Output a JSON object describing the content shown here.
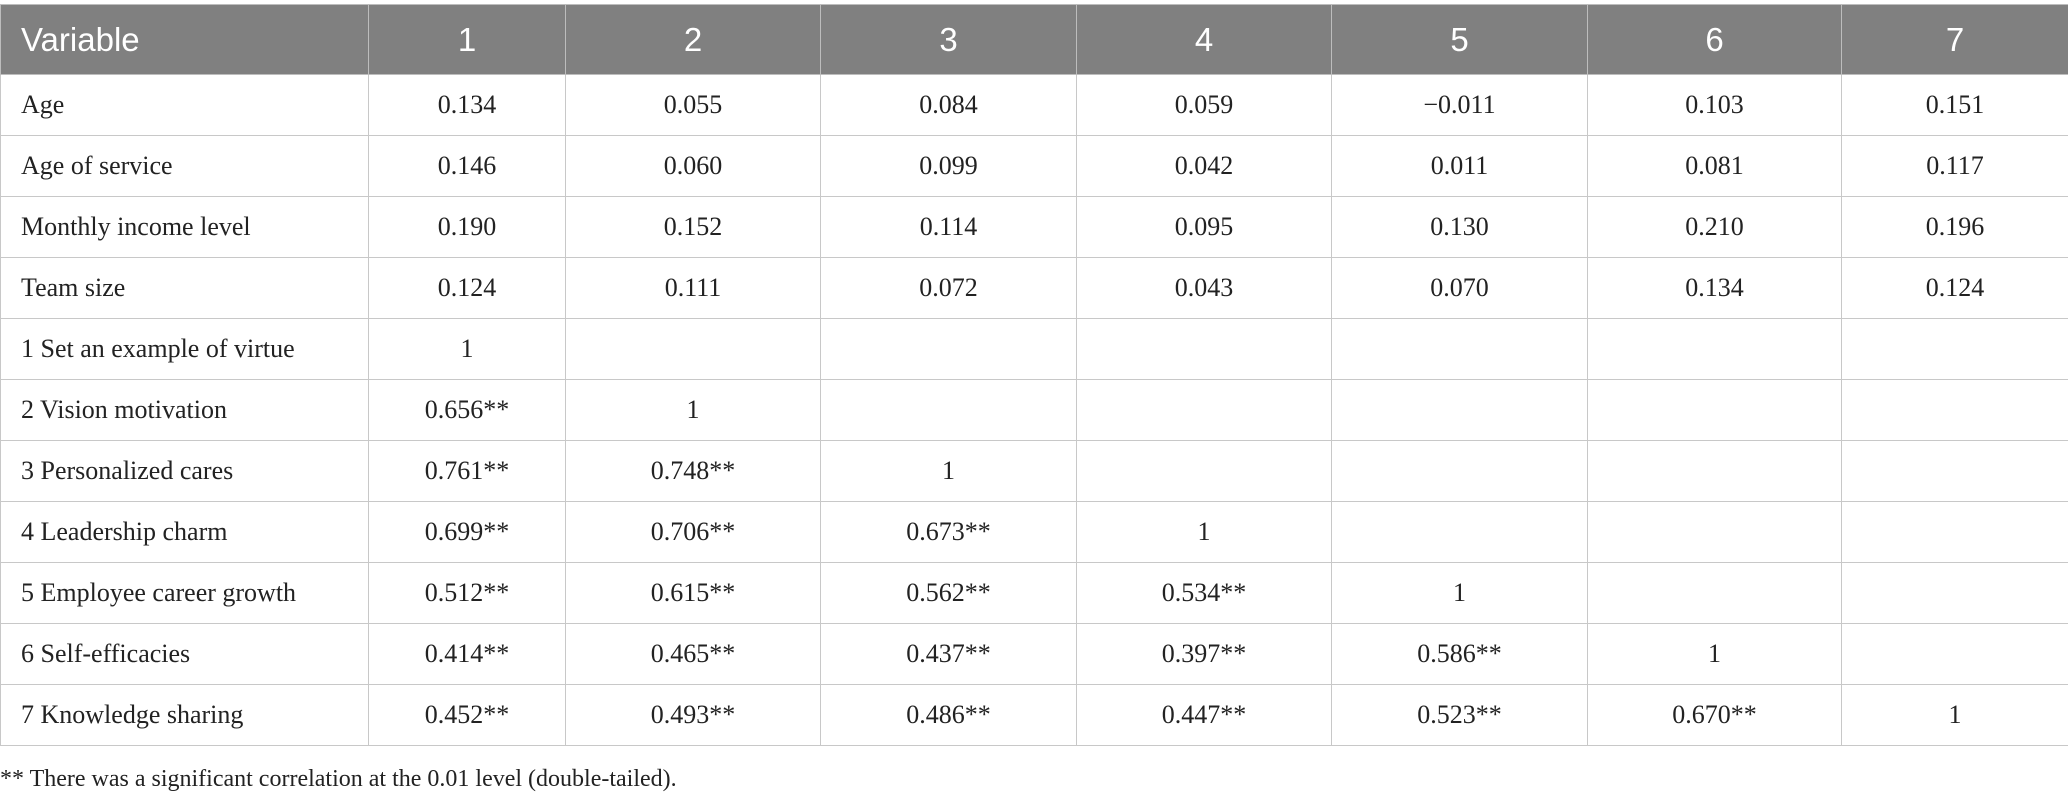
{
  "table": {
    "header": [
      "Variable",
      "1",
      "2",
      "3",
      "4",
      "5",
      "6",
      "7"
    ],
    "rows": [
      [
        "Age",
        "0.134",
        "0.055",
        "0.084",
        "0.059",
        "−0.011",
        "0.103",
        "0.151"
      ],
      [
        "Age of service",
        "0.146",
        "0.060",
        "0.099",
        "0.042",
        "0.011",
        "0.081",
        "0.117"
      ],
      [
        "Monthly income level",
        "0.190",
        "0.152",
        "0.114",
        "0.095",
        "0.130",
        "0.210",
        "0.196"
      ],
      [
        "Team size",
        "0.124",
        "0.111",
        "0.072",
        "0.043",
        "0.070",
        "0.134",
        "0.124"
      ],
      [
        "1 Set an example of virtue",
        "1"
      ],
      [
        "2 Vision motivation",
        "0.656**",
        "1"
      ],
      [
        "3 Personalized cares",
        "0.761**",
        "0.748**",
        "1"
      ],
      [
        "4 Leadership charm",
        "0.699**",
        "0.706**",
        "0.673**",
        "1"
      ],
      [
        "5 Employee career growth",
        "0.512**",
        "0.615**",
        "0.562**",
        "0.534**",
        "1"
      ],
      [
        "6 Self-efficacies",
        "0.414**",
        "0.465**",
        "0.437**",
        "0.397**",
        "0.586**",
        "1"
      ],
      [
        "7 Knowledge sharing",
        "0.452**",
        "0.493**",
        "0.486**",
        "0.447**",
        "0.523**",
        "0.670**",
        "1"
      ]
    ],
    "note": "** There was a significant correlation at the 0.01 level (double-tailed)."
  }
}
